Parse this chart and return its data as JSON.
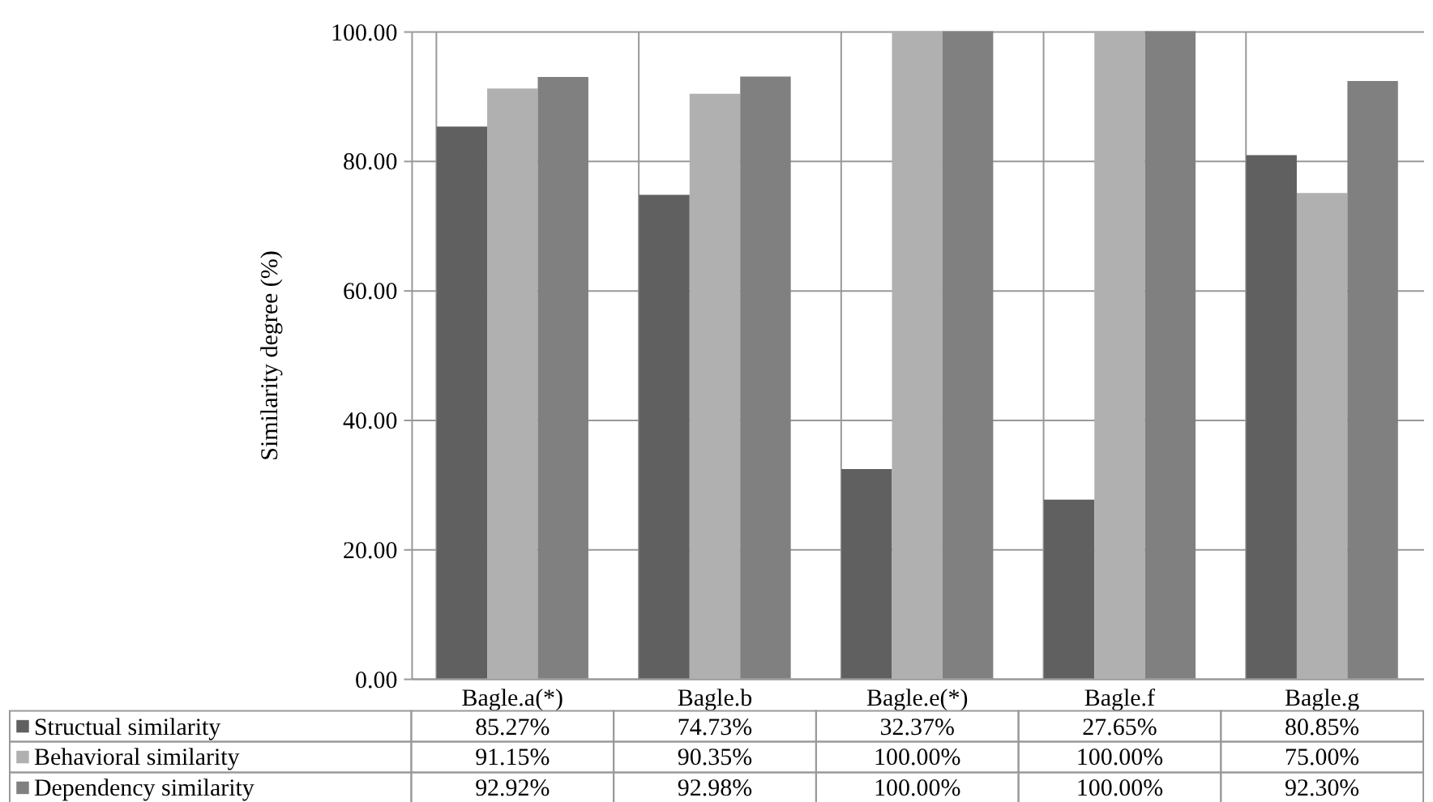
{
  "chart_data": {
    "type": "bar",
    "ylabel": "Similarity degree (%)",
    "categories": [
      "Bagle.a(*)",
      "Bagle.b",
      "Bagle.e(*)",
      "Bagle.f",
      "Bagle.g"
    ],
    "series": [
      {
        "name": "Structual similarity",
        "color": "#606060",
        "values": [
          85.27,
          74.73,
          32.37,
          27.65,
          80.85
        ],
        "value_labels": [
          "85.27%",
          "74.73%",
          "32.37%",
          "27.65%",
          "80.85%"
        ]
      },
      {
        "name": "Behavioral similarity",
        "color": "#b0b0b0",
        "values": [
          91.15,
          90.35,
          100.0,
          100.0,
          75.0
        ],
        "value_labels": [
          "91.15%",
          "90.35%",
          "100.00%",
          "100.00%",
          "75.00%"
        ]
      },
      {
        "name": "Dependency similarity",
        "color": "#808080",
        "values": [
          92.92,
          92.98,
          100.0,
          100.0,
          92.3
        ],
        "value_labels": [
          "92.92%",
          "92.98%",
          "100.00%",
          "100.00%",
          "92.30%"
        ]
      }
    ],
    "ylim": [
      0,
      100
    ],
    "yticks": [
      {
        "value": 0,
        "label": "0.00"
      },
      {
        "value": 20,
        "label": "20.00"
      },
      {
        "value": 40,
        "label": "40.00"
      },
      {
        "value": 60,
        "label": "60.00"
      },
      {
        "value": 80,
        "label": "80.00"
      },
      {
        "value": 100,
        "label": "100.00"
      }
    ],
    "grid": "y",
    "legend": "bottom"
  }
}
